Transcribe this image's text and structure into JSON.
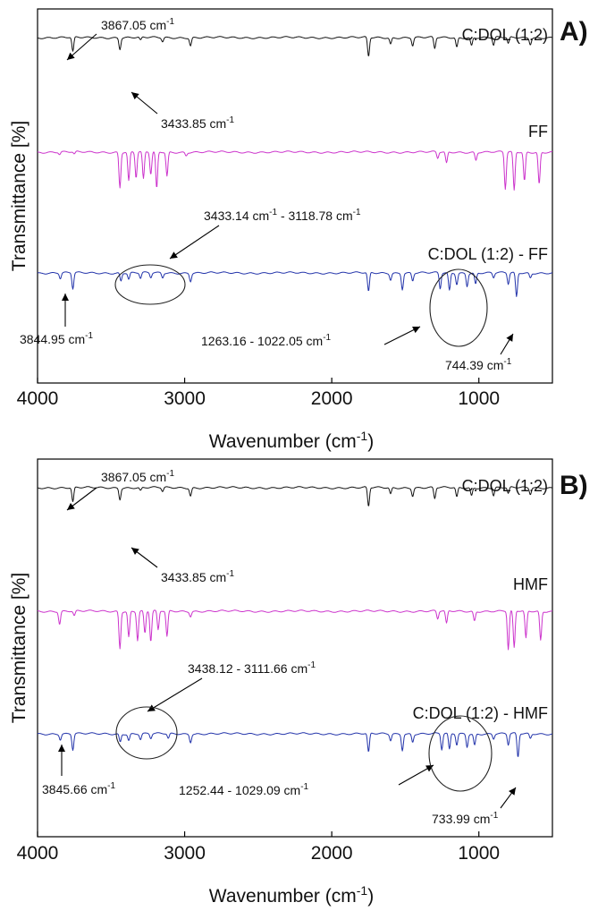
{
  "chart_data": [
    {
      "type": "line",
      "panel_label": "A)",
      "xlabel": "Wavenumber (cm-1)",
      "ylabel": "Transmittance [%]",
      "xlim": [
        4000,
        500
      ],
      "x_reversed": true,
      "x_ticks": [
        4000,
        3000,
        2000,
        1000
      ],
      "series": [
        {
          "name": "C:DOL (1:2)",
          "color": "#111111",
          "baseline": 1.0,
          "peaks": [
            {
              "x": 3760,
              "depth": 0.9
            },
            {
              "x": 3440,
              "depth": 0.7
            },
            {
              "x": 3300,
              "depth": 0.2
            },
            {
              "x": 3150,
              "depth": 0.25
            },
            {
              "x": 2960,
              "depth": 0.5
            },
            {
              "x": 1750,
              "depth": 1.2
            },
            {
              "x": 1600,
              "depth": 0.4
            },
            {
              "x": 1450,
              "depth": 0.5
            },
            {
              "x": 1300,
              "depth": 0.7
            },
            {
              "x": 1150,
              "depth": 0.6
            },
            {
              "x": 1050,
              "depth": 0.5
            },
            {
              "x": 900,
              "depth": 0.5
            },
            {
              "x": 800,
              "depth": 0.4
            },
            {
              "x": 650,
              "depth": 0.4
            }
          ]
        },
        {
          "name": "FF",
          "color": "#cc33cc",
          "baseline": 1.0,
          "peaks": [
            {
              "x": 3850,
              "depth": 0.15
            },
            {
              "x": 3750,
              "depth": 0.15
            },
            {
              "x": 3440,
              "depth": 2.2
            },
            {
              "x": 3380,
              "depth": 1.8
            },
            {
              "x": 3330,
              "depth": 1.6
            },
            {
              "x": 3280,
              "depth": 1.7
            },
            {
              "x": 3230,
              "depth": 1.4
            },
            {
              "x": 3190,
              "depth": 2.3
            },
            {
              "x": 3120,
              "depth": 1.5
            },
            {
              "x": 2990,
              "depth": 0.2
            },
            {
              "x": 1280,
              "depth": 0.4
            },
            {
              "x": 1220,
              "depth": 0.7
            },
            {
              "x": 1020,
              "depth": 0.5
            },
            {
              "x": 820,
              "depth": 2.3
            },
            {
              "x": 760,
              "depth": 2.4
            },
            {
              "x": 690,
              "depth": 1.8
            },
            {
              "x": 590,
              "depth": 2.0
            }
          ]
        },
        {
          "name": "C:DOL (1:2) - FF",
          "color": "#2233aa",
          "baseline": 1.0,
          "peaks": [
            {
              "x": 3845,
              "depth": 0.35
            },
            {
              "x": 3760,
              "depth": 1.0
            },
            {
              "x": 3433,
              "depth": 0.5
            },
            {
              "x": 3380,
              "depth": 0.4
            },
            {
              "x": 3300,
              "depth": 0.35
            },
            {
              "x": 3230,
              "depth": 0.3
            },
            {
              "x": 3150,
              "depth": 0.3
            },
            {
              "x": 2960,
              "depth": 0.5
            },
            {
              "x": 1750,
              "depth": 1.2
            },
            {
              "x": 1600,
              "depth": 0.4
            },
            {
              "x": 1520,
              "depth": 1.0
            },
            {
              "x": 1450,
              "depth": 0.5
            },
            {
              "x": 1263,
              "depth": 1.0
            },
            {
              "x": 1200,
              "depth": 1.1
            },
            {
              "x": 1150,
              "depth": 0.7
            },
            {
              "x": 1080,
              "depth": 0.8
            },
            {
              "x": 1022,
              "depth": 0.7
            },
            {
              "x": 900,
              "depth": 0.3
            },
            {
              "x": 800,
              "depth": 0.7
            },
            {
              "x": 744,
              "depth": 1.5
            },
            {
              "x": 650,
              "depth": 0.3
            }
          ]
        }
      ],
      "annotations": [
        {
          "text": "3867.05 cm",
          "sup": "-1"
        },
        {
          "text": "3433.85 cm",
          "sup": "-1"
        },
        {
          "text": "3433.14 cm",
          "sup": "-1",
          "text2": " - 3118.78 cm",
          "sup2": "-1"
        },
        {
          "text": "3844.95 cm",
          "sup": "-1"
        },
        {
          "text": "1263.16 - 1022.05 cm",
          "sup": "-1"
        },
        {
          "text": "744.39 cm",
          "sup": "-1"
        }
      ]
    },
    {
      "type": "line",
      "panel_label": "B)",
      "xlabel": "Wavenumber (cm-1)",
      "ylabel": "Transmittance [%]",
      "xlim": [
        4000,
        500
      ],
      "x_reversed": true,
      "x_ticks": [
        4000,
        3000,
        2000,
        1000
      ],
      "series": [
        {
          "name": "C:DOL (1:2)",
          "color": "#111111",
          "baseline": 1.0,
          "peaks": [
            {
              "x": 3760,
              "depth": 0.9
            },
            {
              "x": 3440,
              "depth": 0.7
            },
            {
              "x": 3300,
              "depth": 0.2
            },
            {
              "x": 3150,
              "depth": 0.25
            },
            {
              "x": 2960,
              "depth": 0.5
            },
            {
              "x": 1750,
              "depth": 1.2
            },
            {
              "x": 1600,
              "depth": 0.4
            },
            {
              "x": 1450,
              "depth": 0.5
            },
            {
              "x": 1300,
              "depth": 0.7
            },
            {
              "x": 1150,
              "depth": 0.6
            },
            {
              "x": 1050,
              "depth": 0.5
            },
            {
              "x": 900,
              "depth": 0.5
            },
            {
              "x": 800,
              "depth": 0.4
            },
            {
              "x": 650,
              "depth": 0.4
            }
          ]
        },
        {
          "name": "HMF",
          "color": "#cc33cc",
          "baseline": 1.0,
          "peaks": [
            {
              "x": 3850,
              "depth": 0.8
            },
            {
              "x": 3750,
              "depth": 0.3
            },
            {
              "x": 3440,
              "depth": 2.3
            },
            {
              "x": 3380,
              "depth": 1.6
            },
            {
              "x": 3320,
              "depth": 1.8
            },
            {
              "x": 3270,
              "depth": 1.4
            },
            {
              "x": 3230,
              "depth": 1.9
            },
            {
              "x": 3180,
              "depth": 1.2
            },
            {
              "x": 3120,
              "depth": 1.6
            },
            {
              "x": 2960,
              "depth": 0.3
            },
            {
              "x": 1280,
              "depth": 0.5
            },
            {
              "x": 1220,
              "depth": 0.8
            },
            {
              "x": 1030,
              "depth": 0.6
            },
            {
              "x": 800,
              "depth": 2.4
            },
            {
              "x": 760,
              "depth": 2.3
            },
            {
              "x": 680,
              "depth": 1.7
            },
            {
              "x": 580,
              "depth": 1.8
            }
          ]
        },
        {
          "name": "C:DOL (1:2) - HMF",
          "color": "#2233aa",
          "baseline": 1.0,
          "peaks": [
            {
              "x": 3845,
              "depth": 0.35
            },
            {
              "x": 3760,
              "depth": 1.0
            },
            {
              "x": 3438,
              "depth": 0.5
            },
            {
              "x": 3380,
              "depth": 0.4
            },
            {
              "x": 3300,
              "depth": 0.35
            },
            {
              "x": 3230,
              "depth": 0.3
            },
            {
              "x": 3111,
              "depth": 0.3
            },
            {
              "x": 2960,
              "depth": 0.5
            },
            {
              "x": 1750,
              "depth": 1.2
            },
            {
              "x": 1600,
              "depth": 0.4
            },
            {
              "x": 1520,
              "depth": 1.0
            },
            {
              "x": 1450,
              "depth": 0.5
            },
            {
              "x": 1252,
              "depth": 1.0
            },
            {
              "x": 1200,
              "depth": 1.0
            },
            {
              "x": 1150,
              "depth": 0.7
            },
            {
              "x": 1080,
              "depth": 0.8
            },
            {
              "x": 1029,
              "depth": 0.7
            },
            {
              "x": 900,
              "depth": 0.3
            },
            {
              "x": 800,
              "depth": 0.7
            },
            {
              "x": 734,
              "depth": 1.5
            },
            {
              "x": 650,
              "depth": 0.3
            }
          ]
        }
      ],
      "annotations": [
        {
          "text": "3867.05 cm",
          "sup": "-1"
        },
        {
          "text": "3433.85 cm",
          "sup": "-1"
        },
        {
          "text": "3438.12 - 3111.66 cm",
          "sup": "-1"
        },
        {
          "text": "3845.66 cm",
          "sup": "-1"
        },
        {
          "text": "1252.44 - 1029.09 cm",
          "sup": "-1"
        },
        {
          "text": "733.99 cm",
          "sup": "-1"
        }
      ]
    }
  ]
}
